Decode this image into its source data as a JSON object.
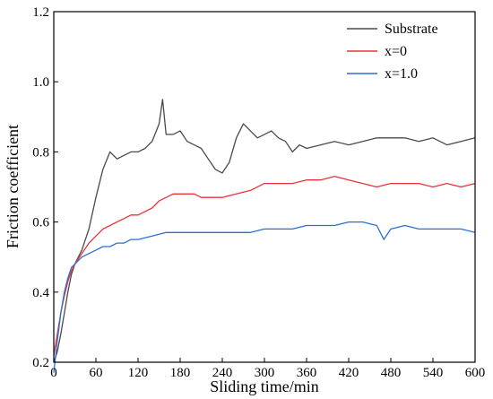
{
  "chart_data": {
    "type": "line",
    "xlabel": "Sliding time/min",
    "ylabel": "Friction coefficient",
    "xlim": [
      0,
      600
    ],
    "ylim": [
      0.2,
      1.2
    ],
    "xticks": [
      0,
      60,
      120,
      180,
      240,
      300,
      360,
      420,
      480,
      540,
      600
    ],
    "yticks": [
      0.2,
      0.4,
      0.6,
      0.8,
      1.0,
      1.2
    ],
    "xtick_labels": [
      "0",
      "60",
      "120",
      "180",
      "240",
      "300",
      "360",
      "420",
      "480",
      "540",
      "600"
    ],
    "ytick_labels": [
      "0.2",
      "0.4",
      "0.6",
      "0.8",
      "1.0",
      "1.2"
    ],
    "grid": false,
    "legend_position": "top-right",
    "series": [
      {
        "name": "Substrate",
        "color": "#4a4a4a",
        "x": [
          0,
          5,
          10,
          15,
          20,
          25,
          30,
          40,
          50,
          60,
          70,
          80,
          90,
          100,
          110,
          120,
          130,
          140,
          150,
          155,
          160,
          170,
          180,
          190,
          200,
          210,
          220,
          230,
          240,
          250,
          260,
          270,
          280,
          290,
          300,
          310,
          320,
          330,
          340,
          350,
          360,
          380,
          400,
          420,
          440,
          460,
          480,
          500,
          520,
          540,
          560,
          580,
          600
        ],
        "values": [
          0.2,
          0.23,
          0.28,
          0.34,
          0.4,
          0.45,
          0.48,
          0.52,
          0.58,
          0.67,
          0.75,
          0.8,
          0.78,
          0.79,
          0.8,
          0.8,
          0.81,
          0.83,
          0.88,
          0.95,
          0.85,
          0.85,
          0.86,
          0.83,
          0.82,
          0.81,
          0.78,
          0.75,
          0.74,
          0.77,
          0.84,
          0.88,
          0.86,
          0.84,
          0.85,
          0.86,
          0.84,
          0.83,
          0.8,
          0.82,
          0.81,
          0.82,
          0.83,
          0.82,
          0.83,
          0.84,
          0.84,
          0.84,
          0.83,
          0.84,
          0.82,
          0.83,
          0.84
        ]
      },
      {
        "name": "x=0",
        "color": "#e8333b",
        "x": [
          0,
          5,
          10,
          15,
          20,
          25,
          30,
          40,
          50,
          60,
          70,
          80,
          90,
          100,
          110,
          120,
          130,
          140,
          150,
          160,
          170,
          180,
          190,
          200,
          210,
          220,
          240,
          260,
          280,
          300,
          320,
          340,
          360,
          380,
          400,
          420,
          440,
          460,
          480,
          500,
          520,
          540,
          560,
          580,
          600
        ],
        "values": [
          0.22,
          0.28,
          0.34,
          0.39,
          0.43,
          0.46,
          0.48,
          0.51,
          0.54,
          0.56,
          0.58,
          0.59,
          0.6,
          0.61,
          0.62,
          0.62,
          0.63,
          0.64,
          0.66,
          0.67,
          0.68,
          0.68,
          0.68,
          0.68,
          0.67,
          0.67,
          0.67,
          0.68,
          0.69,
          0.71,
          0.71,
          0.71,
          0.72,
          0.72,
          0.73,
          0.72,
          0.71,
          0.7,
          0.71,
          0.71,
          0.71,
          0.7,
          0.71,
          0.7,
          0.71
        ]
      },
      {
        "name": "x=1.0",
        "color": "#2a6fd6",
        "x": [
          0,
          5,
          10,
          15,
          20,
          25,
          30,
          40,
          50,
          60,
          70,
          80,
          90,
          100,
          110,
          120,
          140,
          160,
          180,
          200,
          220,
          240,
          260,
          280,
          300,
          320,
          340,
          360,
          380,
          400,
          420,
          440,
          460,
          470,
          480,
          500,
          520,
          540,
          560,
          580,
          600
        ],
        "values": [
          0.17,
          0.26,
          0.34,
          0.4,
          0.44,
          0.47,
          0.48,
          0.5,
          0.51,
          0.52,
          0.53,
          0.53,
          0.54,
          0.54,
          0.55,
          0.55,
          0.56,
          0.57,
          0.57,
          0.57,
          0.57,
          0.57,
          0.57,
          0.57,
          0.58,
          0.58,
          0.58,
          0.59,
          0.59,
          0.59,
          0.6,
          0.6,
          0.59,
          0.55,
          0.58,
          0.59,
          0.58,
          0.58,
          0.58,
          0.58,
          0.57
        ]
      }
    ]
  }
}
